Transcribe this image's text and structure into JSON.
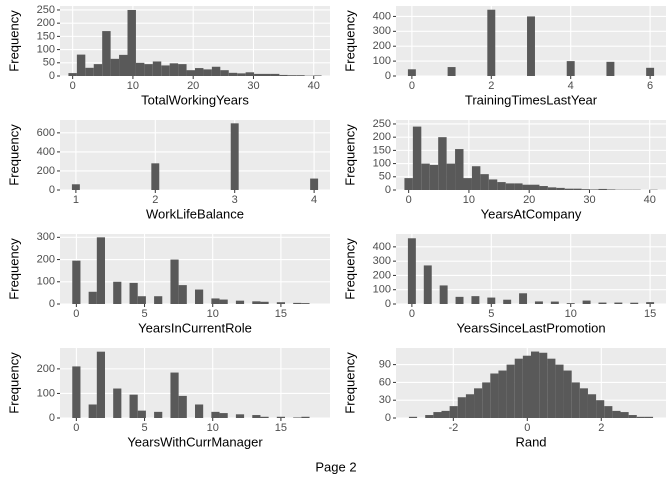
{
  "chart_data": [
    {
      "type": "histogram",
      "x_label": "TotalWorkingYears",
      "y_label": "Frequency",
      "bins": [
        -0.7,
        0.7,
        2.1,
        3.5,
        4.9,
        6.3,
        7.7,
        9.1,
        10.5,
        11.9,
        13.3,
        14.7,
        16.1,
        17.5,
        18.9,
        20.3,
        21.7,
        23.1,
        24.5,
        25.9,
        27.3,
        28.7,
        30.1,
        31.5,
        32.9,
        34.3,
        35.7,
        37.1,
        38.5,
        39.9,
        41.3
      ],
      "values": [
        11,
        81,
        31,
        45,
        170,
        65,
        80,
        250,
        50,
        45,
        55,
        40,
        48,
        45,
        22,
        30,
        25,
        35,
        22,
        12,
        10,
        14,
        8,
        8,
        8,
        4,
        3,
        3,
        1,
        2
      ],
      "color": "#595959",
      "xlim": [
        -2.1,
        42.7
      ],
      "xticks": [
        0,
        10,
        20,
        30,
        40
      ],
      "ylim": [
        0,
        265
      ],
      "yticks": [
        0,
        50,
        100,
        150,
        200,
        250
      ],
      "grid": true
    },
    {
      "type": "histogram",
      "x_label": "TrainingTimesLastYear",
      "y_label": "Frequency",
      "bins": [
        -0.1,
        0.1,
        0.3,
        0.5,
        0.7,
        0.9,
        1.1,
        1.3,
        1.5,
        1.7,
        1.9,
        2.1,
        2.3,
        2.5,
        2.7,
        2.9,
        3.1,
        3.3,
        3.5,
        3.7,
        3.9,
        4.1,
        4.3,
        4.5,
        4.7,
        4.9,
        5.1,
        5.3,
        5.5,
        5.7,
        5.9,
        6.1
      ],
      "values": [
        45,
        0,
        0,
        0,
        0,
        60,
        0,
        0,
        0,
        0,
        445,
        0,
        0,
        0,
        0,
        400,
        0,
        0,
        0,
        0,
        100,
        0,
        0,
        0,
        0,
        95,
        0,
        0,
        0,
        0,
        55
      ],
      "color": "#595959",
      "xlim": [
        -0.4,
        6.4
      ],
      "xticks": [
        0,
        2,
        4,
        6
      ],
      "ylim": [
        0,
        470
      ],
      "yticks": [
        0,
        100,
        200,
        300,
        400
      ],
      "grid": true
    },
    {
      "type": "histogram",
      "x_label": "WorkLifeBalance",
      "y_label": "Frequency",
      "bins": [
        0.95,
        1.05,
        1.15,
        1.25,
        1.35,
        1.45,
        1.55,
        1.65,
        1.75,
        1.85,
        1.95,
        2.05,
        2.15,
        2.25,
        2.35,
        2.45,
        2.55,
        2.65,
        2.75,
        2.85,
        2.95,
        3.05,
        3.15,
        3.25,
        3.35,
        3.45,
        3.55,
        3.65,
        3.75,
        3.85,
        3.95,
        4.05
      ],
      "values": [
        60,
        0,
        0,
        0,
        0,
        0,
        0,
        0,
        0,
        0,
        280,
        0,
        0,
        0,
        0,
        0,
        0,
        0,
        0,
        0,
        700,
        0,
        0,
        0,
        0,
        0,
        0,
        0,
        0,
        0,
        120
      ],
      "color": "#595959",
      "xlim": [
        0.8,
        4.2
      ],
      "xticks": [
        1,
        2,
        3,
        4
      ],
      "ylim": [
        0,
        735
      ],
      "yticks": [
        0,
        200,
        400,
        600
      ],
      "grid": true
    },
    {
      "type": "histogram",
      "x_label": "YearsAtCompany",
      "y_label": "Frequency",
      "bins": [
        -0.7,
        0.7,
        2.1,
        3.5,
        4.9,
        6.3,
        7.7,
        9.1,
        10.5,
        11.9,
        13.3,
        14.7,
        16.1,
        17.5,
        18.9,
        20.3,
        21.7,
        23.1,
        24.5,
        25.9,
        27.3,
        28.7,
        30.1,
        31.5,
        32.9,
        34.3,
        35.7,
        37.1,
        38.5,
        39.9,
        41.3
      ],
      "values": [
        45,
        240,
        100,
        95,
        200,
        100,
        155,
        45,
        90,
        60,
        40,
        30,
        25,
        25,
        20,
        20,
        15,
        10,
        8,
        5,
        5,
        3,
        2,
        4,
        2,
        1,
        1,
        1,
        0,
        1
      ],
      "color": "#595959",
      "xlim": [
        -2.1,
        42.7
      ],
      "xticks": [
        0,
        10,
        20,
        30,
        40
      ],
      "ylim": [
        0,
        265
      ],
      "yticks": [
        0,
        50,
        100,
        150,
        200,
        250
      ],
      "grid": true
    },
    {
      "type": "histogram",
      "x_label": "YearsInCurrentRole",
      "y_label": "Frequency",
      "bins": [
        -0.3,
        0.3,
        0.9,
        1.5,
        2.1,
        2.7,
        3.3,
        3.9,
        4.5,
        5.1,
        5.7,
        6.3,
        6.9,
        7.5,
        8.1,
        8.7,
        9.3,
        9.9,
        10.5,
        11.1,
        11.7,
        12.3,
        12.9,
        13.5,
        14.1,
        14.7,
        15.3,
        15.9,
        16.5,
        17.1,
        17.7
      ],
      "values": [
        195,
        0,
        55,
        300,
        0,
        100,
        0,
        95,
        35,
        0,
        35,
        0,
        200,
        85,
        0,
        65,
        0,
        25,
        20,
        0,
        15,
        0,
        12,
        10,
        0,
        8,
        0,
        5,
        4,
        0
      ],
      "color": "#595959",
      "xlim": [
        -1.2,
        18.6
      ],
      "xticks": [
        0,
        5,
        10,
        15
      ],
      "ylim": [
        0,
        315
      ],
      "yticks": [
        0,
        100,
        200,
        300
      ],
      "grid": true
    },
    {
      "type": "histogram",
      "x_label": "YearsSinceLastPromotion",
      "y_label": "Frequency",
      "bins": [
        -0.25,
        0.25,
        0.75,
        1.25,
        1.75,
        2.25,
        2.75,
        3.25,
        3.75,
        4.25,
        4.75,
        5.25,
        5.75,
        6.25,
        6.75,
        7.25,
        7.75,
        8.25,
        8.75,
        9.25,
        9.75,
        10.25,
        10.75,
        11.25,
        11.75,
        12.25,
        12.75,
        13.25,
        13.75,
        14.25,
        14.75,
        15.25
      ],
      "values": [
        460,
        0,
        270,
        0,
        130,
        0,
        50,
        0,
        55,
        0,
        45,
        0,
        30,
        0,
        75,
        0,
        18,
        0,
        17,
        0,
        6,
        0,
        24,
        0,
        10,
        0,
        10,
        0,
        9,
        0,
        13
      ],
      "color": "#595959",
      "xlim": [
        -1.0,
        16.0
      ],
      "xticks": [
        0,
        5,
        10,
        15
      ],
      "ylim": [
        0,
        490
      ],
      "yticks": [
        0,
        100,
        200,
        300,
        400
      ],
      "grid": true
    },
    {
      "type": "histogram",
      "x_label": "YearsWithCurrManager",
      "y_label": "Frequency",
      "bins": [
        -0.3,
        0.3,
        0.9,
        1.5,
        2.1,
        2.7,
        3.3,
        3.9,
        4.5,
        5.1,
        5.7,
        6.3,
        6.9,
        7.5,
        8.1,
        8.7,
        9.3,
        9.9,
        10.5,
        11.1,
        11.7,
        12.3,
        12.9,
        13.5,
        14.1,
        14.7,
        15.3,
        15.9,
        16.5,
        17.1,
        17.7
      ],
      "values": [
        210,
        0,
        55,
        270,
        0,
        120,
        0,
        95,
        30,
        0,
        25,
        0,
        185,
        90,
        0,
        55,
        0,
        25,
        20,
        0,
        15,
        0,
        12,
        5,
        0,
        5,
        0,
        2,
        5,
        0
      ],
      "color": "#595959",
      "xlim": [
        -1.2,
        18.6
      ],
      "xticks": [
        0,
        5,
        10,
        15
      ],
      "ylim": [
        0,
        285
      ],
      "yticks": [
        0,
        100,
        200
      ],
      "grid": true
    },
    {
      "type": "histogram",
      "x_label": "Rand",
      "y_label": "Frequency",
      "bins": [
        -3.2,
        -2.98,
        -2.76,
        -2.54,
        -2.32,
        -2.1,
        -1.88,
        -1.66,
        -1.44,
        -1.22,
        -1.0,
        -0.78,
        -0.56,
        -0.34,
        -0.12,
        0.1,
        0.32,
        0.54,
        0.76,
        0.98,
        1.2,
        1.42,
        1.64,
        1.86,
        2.08,
        2.3,
        2.52,
        2.74,
        2.96,
        3.18,
        3.4
      ],
      "values": [
        2,
        0,
        5,
        10,
        12,
        20,
        35,
        40,
        50,
        60,
        75,
        80,
        90,
        100,
        105,
        112,
        110,
        100,
        90,
        80,
        60,
        50,
        40,
        30,
        20,
        12,
        10,
        5,
        2,
        2
      ],
      "color": "#595959",
      "xlim": [
        -3.55,
        3.75
      ],
      "xticks": [
        -2,
        0,
        2
      ],
      "ylim": [
        0,
        118
      ],
      "yticks": [
        0,
        30,
        60,
        90
      ],
      "grid": true
    }
  ],
  "footer": "Page 2"
}
